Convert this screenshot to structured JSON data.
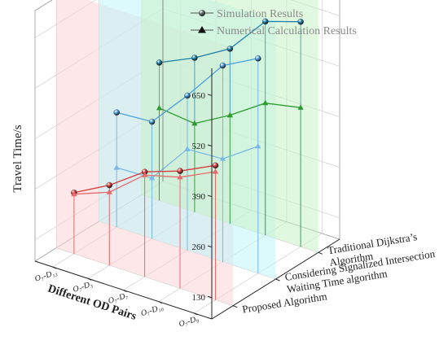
{
  "chart_data": {
    "type": "line",
    "projection": "3d",
    "ylabel": "Travel Time/s",
    "xlabel": "Different OD Pairs",
    "categories": [
      "O₇-D₉",
      "O₇-D₁₀",
      "O₇-D₇",
      "O₇-D₃",
      "O₇-D₁₃"
    ],
    "depth_categories": [
      "Proposed Algorithm",
      "Considering Signalized Intersection Waiting Time algorithm",
      "Traditional Dijkstra’s Algorithm"
    ],
    "depth_labels": [
      [
        "Proposed Algorithm"
      ],
      [
        "Considering Signalized Intersection",
        "Waiting Time algorithm"
      ],
      [
        "Traditional Dijkstra’s",
        "Algorithm"
      ]
    ],
    "yticks": [
      130,
      260,
      390,
      520,
      650
    ],
    "ylim": [
      75,
      720
    ],
    "series": [
      {
        "name": "Simulation Results",
        "algorithm": 0,
        "color": "#d93a3a",
        "values": [
          421,
          377,
          345,
          281,
          232
        ]
      },
      {
        "name": "Numerical Calculation Results",
        "algorithm": 0,
        "color": "#e86b6b",
        "values": [
          405,
          361,
          337,
          263,
          228
        ]
      },
      {
        "name": "Simulation Results",
        "algorithm": 1,
        "color": "#4a9fde",
        "values": [
          628,
          580,
          473,
          376,
          370
        ]
      },
      {
        "name": "Numerical Calculation Results",
        "algorithm": 1,
        "color": "#7ab9e8",
        "values": [
          402,
          340,
          335,
          231,
          228
        ]
      },
      {
        "name": "Simulation Results",
        "algorithm": 2,
        "color": "#1f7fa8",
        "values": [
          654,
          625,
          525,
          472,
          430
        ]
      },
      {
        "name": "Numerical Calculation Results",
        "algorithm": 2,
        "color": "#2e9b2e",
        "values": [
          433,
          415,
          354,
          303,
          313
        ]
      }
    ],
    "legend": {
      "position": "top-right",
      "entries": [
        {
          "label": "Simulation Results",
          "marker": "sphere"
        },
        {
          "label": "Numerical Calculation Results",
          "marker": "triangle"
        }
      ]
    },
    "plane_colors": [
      "#fbd3d6",
      "#bff4fa",
      "#c9f2c7"
    ],
    "grid": true
  }
}
